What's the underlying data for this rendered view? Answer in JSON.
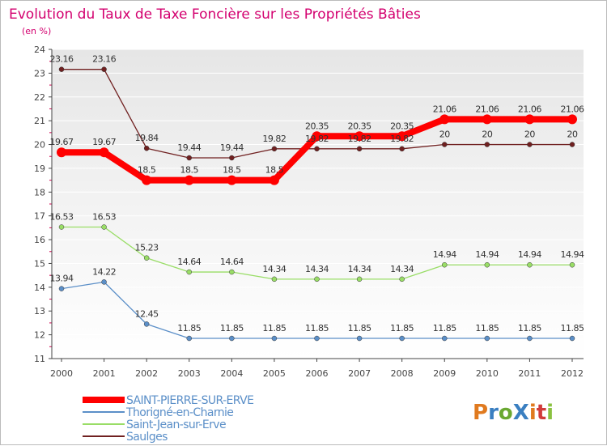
{
  "colors": {
    "background_top": "#e6e6e6",
    "background_bottom": "#ffffff",
    "title": "#d3006f",
    "axis": "#444444",
    "tick_minor": "#d4004f",
    "grid": "#ffffff"
  },
  "logo": {
    "text": "ProXiti"
  },
  "chart_data": {
    "type": "line",
    "title": "Evolution du Taux de Taxe Foncière sur les Propriétés Bâties",
    "subtitle": "(en %)",
    "xlabel": "",
    "ylabel": "(en %)",
    "ylim": [
      11,
      24
    ],
    "yticks": [
      11,
      12,
      13,
      14,
      15,
      16,
      17,
      18,
      19,
      20,
      21,
      22,
      23,
      24
    ],
    "x": [
      "2000",
      "2001",
      "2002",
      "2003",
      "2004",
      "2005",
      "2006",
      "2007",
      "2008",
      "2009",
      "2010",
      "2011",
      "2012"
    ],
    "legend_position": "bottom-left",
    "series": [
      {
        "name": "Saulges",
        "key": "saulges",
        "color": "#702020",
        "values": [
          23.16,
          23.16,
          19.84,
          19.44,
          19.44,
          19.82,
          19.82,
          19.82,
          19.82,
          20,
          20,
          20,
          20
        ],
        "labels": [
          "23.16",
          "23.16",
          "19.84",
          "19.44",
          "19.44",
          "19.82",
          "19.82",
          "19.82",
          "19.82",
          "20",
          "20",
          "20",
          "20"
        ]
      },
      {
        "name": "Saint-Jean-sur-Erve",
        "key": "saint-jean",
        "color": "#99dd66",
        "values": [
          16.53,
          16.53,
          15.23,
          14.64,
          14.64,
          14.34,
          14.34,
          14.34,
          14.34,
          14.94,
          14.94,
          14.94,
          14.94
        ],
        "labels": [
          "16.53",
          "16.53",
          "15.23",
          "14.64",
          "14.64",
          "14.34",
          "14.34",
          "14.34",
          "14.34",
          "14.94",
          "14.94",
          "14.94",
          "14.94"
        ]
      },
      {
        "name": "Thorigné-en-Charnie",
        "key": "thorigne",
        "color": "#5b8fc8",
        "values": [
          13.94,
          14.22,
          12.45,
          11.85,
          11.85,
          11.85,
          11.85,
          11.85,
          11.85,
          11.85,
          11.85,
          11.85,
          11.85
        ],
        "labels": [
          "13.94",
          "14.22",
          "12.45",
          "11.85",
          "11.85",
          "11.85",
          "11.85",
          "11.85",
          "11.85",
          "11.85",
          "11.85",
          "11.85",
          "11.85"
        ]
      },
      {
        "name": "SAINT-PIERRE-SUR-ERVE",
        "key": "saint-pierre",
        "color": "#ff0000",
        "values": [
          19.67,
          19.67,
          18.5,
          18.5,
          18.5,
          18.5,
          20.35,
          20.35,
          20.35,
          21.06,
          21.06,
          21.06,
          21.06
        ],
        "labels": [
          "19.67",
          "19.67",
          "18.5",
          "18.5",
          "18.5",
          "18.5",
          "20.35",
          "20.35",
          "20.35",
          "21.06",
          "21.06",
          "21.06",
          "21.06"
        ]
      }
    ],
    "legend": [
      "SAINT-PIERRE-SUR-ERVE",
      "Thorigné-en-Charnie",
      "Saint-Jean-sur-Erve",
      "Saulges"
    ]
  }
}
